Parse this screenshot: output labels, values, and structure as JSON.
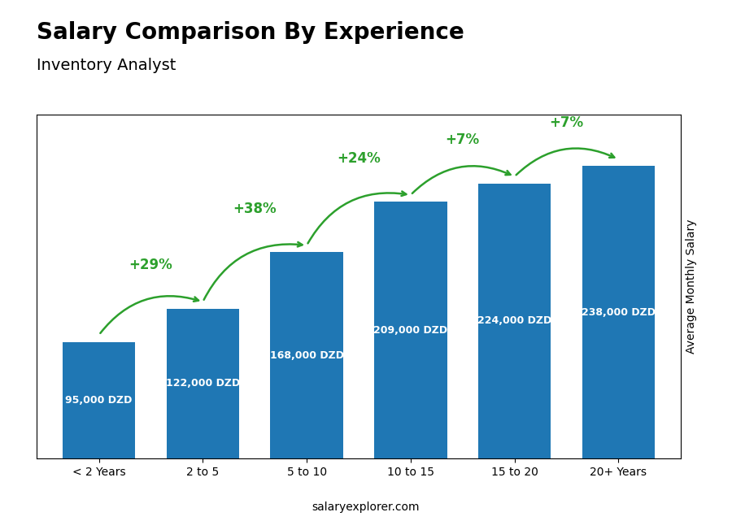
{
  "chart_data": {
    "type": "bar",
    "title": "Salary Comparison By Experience",
    "subtitle": "Inventory Analyst",
    "categories": [
      "< 2 Years",
      "2 to 5",
      "5 to 10",
      "10 to 15",
      "15 to 20",
      "20+ Years"
    ],
    "values": [
      95000,
      122000,
      168000,
      209000,
      224000,
      238000
    ],
    "value_labels": [
      "95,000 DZD",
      "122,000 DZD",
      "168,000 DZD",
      "209,000 DZD",
      "224,000 DZD",
      "238,000 DZD"
    ],
    "data_labels": true,
    "annotations": [
      "+29%",
      "+38%",
      "+24%",
      "+7%",
      "+7%"
    ],
    "ylabel": "Average Monthly Salary",
    "watermark": "salaryexplorer.com",
    "ylim": [
      0,
      280000
    ],
    "yticks": [],
    "tick_labels": "x"
  }
}
